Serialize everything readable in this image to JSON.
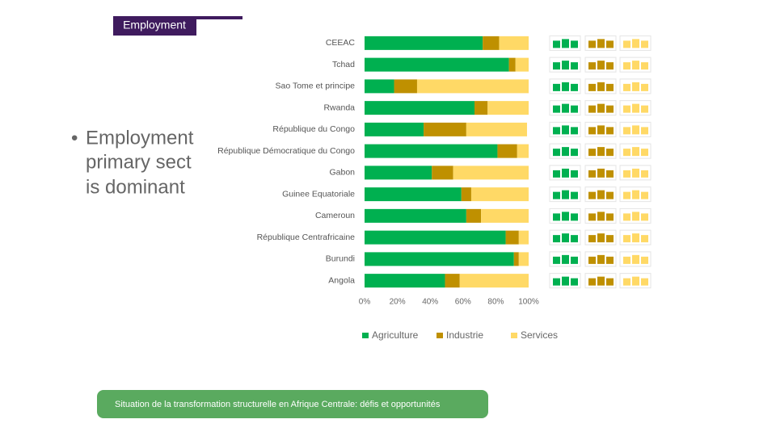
{
  "header": {
    "title": "Employment"
  },
  "bullet": {
    "lines": [
      "Employment",
      "primary sect",
      "is dominant"
    ]
  },
  "footer": {
    "text": "Situation de la transformation structurelle en Afrique Centrale:  défis et opportunités"
  },
  "chart_data": {
    "type": "stacked-barh",
    "categories": [
      "CEEAC",
      "Tchad",
      "Sao Tome et principe",
      "Rwanda",
      "République du Congo",
      "République Démocratique du Congo",
      "Gabon",
      "Guinee Equatoriale",
      "Cameroun",
      "République Centrafricaine",
      "Burundi",
      "Angola"
    ],
    "series": [
      {
        "name": "Agriculture",
        "color": "#00b050",
        "values": [
          72,
          88,
          18,
          67,
          36,
          81,
          41,
          59,
          62,
          86,
          91,
          49
        ]
      },
      {
        "name": "Industrie",
        "color": "#bf9000",
        "values": [
          10,
          4,
          14,
          8,
          26,
          12,
          13,
          6,
          9,
          8,
          3,
          9
        ]
      },
      {
        "name": "Services",
        "color": "#ffd966",
        "values": [
          18,
          8,
          68,
          25,
          37,
          7,
          46,
          35,
          29,
          6,
          6,
          42
        ]
      }
    ],
    "xlim": [
      0,
      100
    ],
    "xticks": [
      {
        "value": 0,
        "label": "0%"
      },
      {
        "value": 20,
        "label": "20%"
      },
      {
        "value": 40,
        "label": "40%"
      },
      {
        "value": 60,
        "label": "60%"
      },
      {
        "value": 80,
        "label": "80%"
      },
      {
        "value": 100,
        "label": "100%"
      }
    ],
    "legend": "bottom"
  }
}
